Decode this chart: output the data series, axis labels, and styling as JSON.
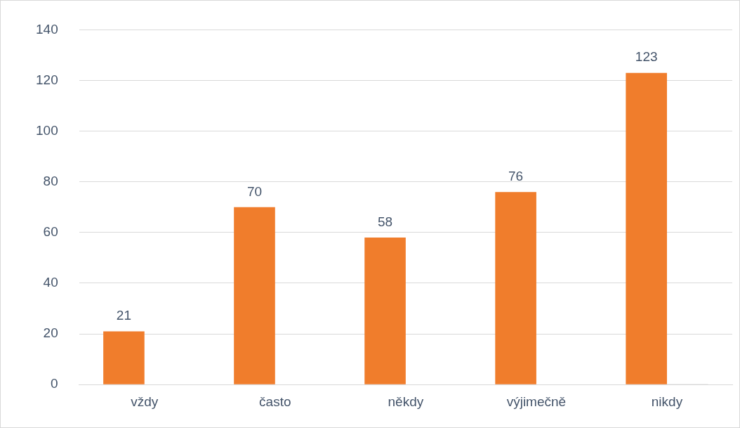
{
  "chart_data": {
    "type": "bar",
    "categories": [
      "vždy",
      "často",
      "někdy",
      "výjimečně",
      "nikdy"
    ],
    "series": [
      {
        "color": "#f07d2c",
        "values": [
          21,
          70,
          58,
          76,
          123
        ],
        "value_labels": [
          "21",
          "70",
          "58",
          "76",
          "123"
        ]
      },
      {
        "color": "#d9d9d9",
        "values": [
          null,
          null,
          null,
          null,
          0
        ]
      }
    ],
    "ylim": [
      0,
      140
    ],
    "yticks": [
      0,
      20,
      40,
      60,
      80,
      100,
      120,
      140
    ],
    "grid": "y",
    "legend": false
  }
}
